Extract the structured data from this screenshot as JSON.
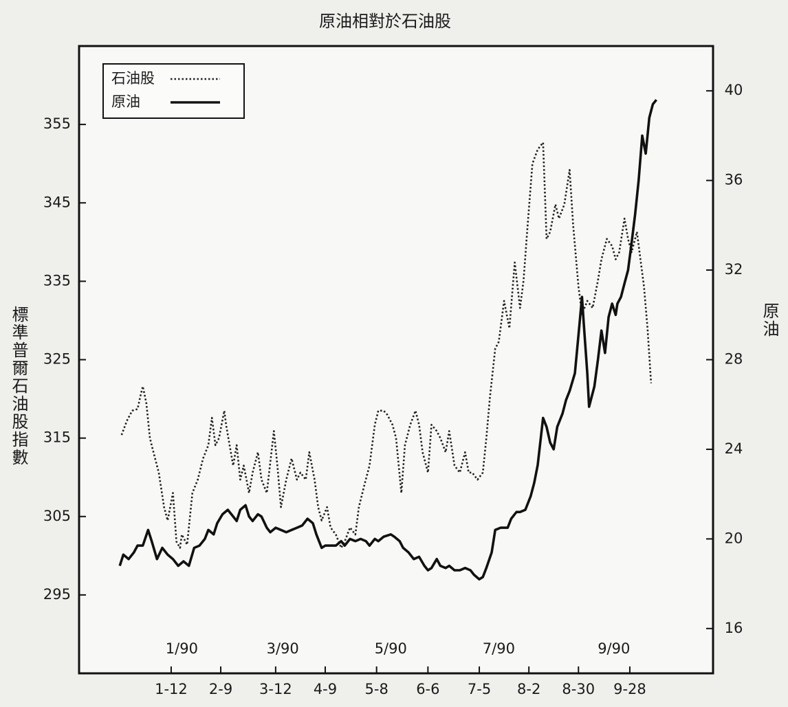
{
  "chart_data": {
    "type": "line",
    "title": "原油相對於石油股",
    "y_label": "標準普爾石油股指數",
    "y2_label": "原油",
    "xlim": [
      -40,
      318
    ],
    "xticks": [
      {
        "value": 12,
        "label": "1-12"
      },
      {
        "value": 40,
        "label": "2-9"
      },
      {
        "value": 71,
        "label": "3-12"
      },
      {
        "value": 99,
        "label": "4-9"
      },
      {
        "value": 128,
        "label": "5-8"
      },
      {
        "value": 157,
        "label": "6-6"
      },
      {
        "value": 186,
        "label": "7-5"
      },
      {
        "value": 214,
        "label": "8-2"
      },
      {
        "value": 242,
        "label": "8-30"
      },
      {
        "value": 271,
        "label": "9-28"
      }
    ],
    "month_labels": [
      {
        "value": 18,
        "label": "1/90"
      },
      {
        "value": 75,
        "label": "3/90"
      },
      {
        "value": 136,
        "label": "5/90"
      },
      {
        "value": 197,
        "label": "7/90"
      },
      {
        "value": 262,
        "label": "9/90"
      }
    ],
    "ylim": [
      285,
      365
    ],
    "yticks": [
      295,
      305,
      315,
      325,
      335,
      345,
      355
    ],
    "y2lim": [
      14,
      42
    ],
    "y2ticks": [
      16,
      20,
      24,
      28,
      32,
      36,
      40
    ],
    "legend": "upper left",
    "series": [
      {
        "name": "石油股",
        "color": "#222222",
        "dash": "dotted",
        "axis": "y",
        "x": [
          -16,
          -13,
          -10,
          -7,
          -5,
          -4,
          -2,
          0,
          2,
          5,
          8,
          10,
          13,
          15,
          17,
          18,
          21,
          24,
          27,
          30,
          33,
          35,
          37,
          39,
          42,
          43,
          45,
          47,
          49,
          51,
          53,
          56,
          58,
          61,
          63,
          66,
          70,
          72,
          74,
          77,
          80,
          83,
          85,
          88,
          90,
          93,
          95,
          97,
          100,
          102,
          105,
          108,
          110,
          113,
          116,
          118,
          121,
          124,
          127,
          129,
          132,
          134,
          137,
          139,
          142,
          144,
          147,
          150,
          152,
          154,
          157,
          159,
          162,
          164,
          167,
          169,
          172,
          175,
          178,
          180,
          182,
          185,
          188,
          190,
          192,
          195,
          197,
          200,
          203,
          206,
          209,
          211,
          213,
          216,
          219,
          222,
          224,
          226,
          229,
          231,
          234,
          237,
          239,
          242,
          244,
          247,
          250,
          253,
          255,
          258,
          261,
          263,
          265,
          268,
          270,
          272,
          275,
          277,
          279,
          281,
          283
        ],
        "values": [
          315.4,
          317.2,
          318.5,
          318.7,
          320.7,
          321.6,
          319.4,
          315,
          313.2,
          310.6,
          306.2,
          304.5,
          308,
          301.8,
          301,
          302.7,
          301.4,
          308,
          309.7,
          312.4,
          314.1,
          317.6,
          314.1,
          315,
          318.5,
          316.7,
          314.1,
          311.5,
          314.1,
          309.7,
          311.5,
          308,
          310.6,
          313.2,
          309.7,
          308,
          315.9,
          311.5,
          306.2,
          309.7,
          312.4,
          309.7,
          310.6,
          309.7,
          313.2,
          309.7,
          306.2,
          304.5,
          306.2,
          303.6,
          302.7,
          301,
          301.8,
          303.6,
          302.7,
          306.2,
          308.9,
          311.5,
          316.7,
          318.5,
          318.5,
          318,
          316.7,
          315,
          308,
          314.1,
          316.7,
          318.5,
          316.7,
          313.2,
          310.6,
          316.7,
          315.9,
          315,
          313.2,
          315.9,
          311.5,
          310.6,
          313.2,
          310.6,
          310.6,
          309.7,
          310.6,
          315,
          320.2,
          326.4,
          327.3,
          332.5,
          329,
          337.4,
          331.6,
          335.1,
          341.3,
          350,
          351.8,
          352.7,
          340.4,
          341.3,
          344.8,
          343,
          344.8,
          349.2,
          342.2,
          334.3,
          330.8,
          332.5,
          331.6,
          335.1,
          337.8,
          340.4,
          339.5,
          337.8,
          338.7,
          343,
          340.4,
          338.7,
          341.3,
          337.8,
          334.3,
          329,
          322
        ]
      },
      {
        "name": "原油",
        "color": "#111111",
        "dash": "solid",
        "axis": "y2",
        "x": [
          -17,
          -15,
          -12,
          -9,
          -7,
          -4,
          -1,
          1,
          4,
          7,
          10,
          13,
          16,
          19,
          22,
          25,
          28,
          31,
          33,
          36,
          38,
          41,
          44,
          47,
          49,
          51,
          54,
          56,
          58,
          61,
          63,
          66,
          68,
          71,
          74,
          77,
          80,
          83,
          86,
          89,
          92,
          94,
          97,
          99,
          102,
          105,
          108,
          110,
          113,
          116,
          119,
          122,
          124,
          127,
          129,
          132,
          136,
          138,
          141,
          143,
          146,
          149,
          152,
          155,
          157,
          159,
          162,
          164,
          167,
          169,
          172,
          175,
          178,
          181,
          183,
          186,
          188,
          190,
          193,
          195,
          198,
          202,
          204,
          207,
          209,
          212,
          215,
          217,
          219,
          222,
          224,
          226,
          228,
          230,
          233,
          235,
          237,
          240,
          242,
          244,
          245,
          247,
          248,
          251,
          253,
          255,
          257,
          259,
          261,
          263,
          264,
          266,
          268,
          270,
          272,
          274,
          276,
          278,
          280,
          282,
          284,
          286
        ],
        "values": [
          18.8,
          19.3,
          19.1,
          19.4,
          19.7,
          19.7,
          20.4,
          19.9,
          19.1,
          19.6,
          19.3,
          19.1,
          18.8,
          19,
          18.8,
          19.6,
          19.7,
          20,
          20.4,
          20.2,
          20.7,
          21.1,
          21.3,
          21,
          20.8,
          21.3,
          21.5,
          21,
          20.8,
          21.1,
          21,
          20.5,
          20.3,
          20.5,
          20.4,
          20.3,
          20.4,
          20.5,
          20.6,
          20.9,
          20.7,
          20.2,
          19.6,
          19.7,
          19.7,
          19.7,
          19.9,
          19.7,
          20,
          19.9,
          20,
          19.9,
          19.7,
          20,
          19.9,
          20.1,
          20.2,
          20.1,
          19.9,
          19.6,
          19.4,
          19.1,
          19.2,
          18.8,
          18.6,
          18.7,
          19.1,
          18.8,
          18.7,
          18.8,
          18.6,
          18.6,
          18.7,
          18.6,
          18.4,
          18.2,
          18.3,
          18.7,
          19.4,
          20.4,
          20.5,
          20.5,
          20.9,
          21.2,
          21.2,
          21.3,
          21.9,
          22.5,
          23.3,
          25.4,
          25,
          24.3,
          24,
          25,
          25.6,
          26.2,
          26.6,
          27.4,
          29.1,
          30.8,
          29.6,
          27.4,
          25.9,
          26.8,
          28,
          29.3,
          28.3,
          29.9,
          30.5,
          30,
          30.5,
          30.8,
          31.4,
          32,
          33.2,
          34.5,
          36,
          38,
          37.2,
          38.8,
          39.4,
          39.6
        ]
      }
    ]
  }
}
